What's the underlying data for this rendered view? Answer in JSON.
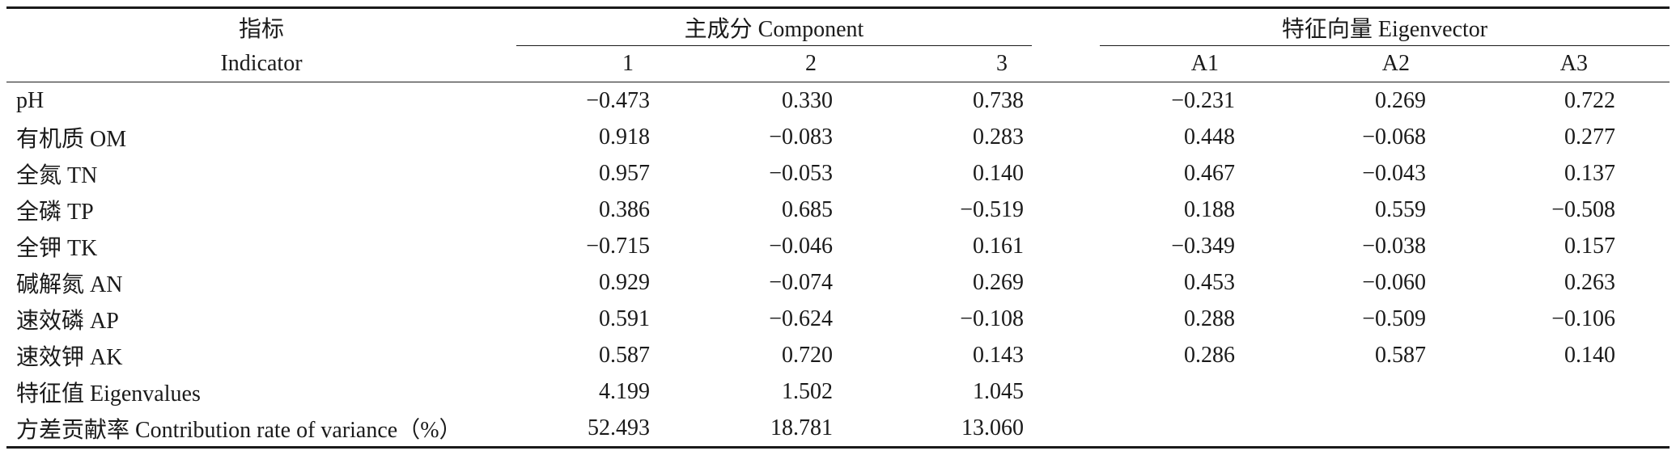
{
  "header": {
    "indicator_cn": "指标",
    "indicator_en": "Indicator",
    "group_component": "主成分 Component",
    "group_eigenvector": "特征向量 Eigenvector",
    "component_cols": [
      "1",
      "2",
      "3"
    ],
    "eigenvector_cols": [
      "A1",
      "A2",
      "A3"
    ]
  },
  "rows": [
    {
      "label": "pH",
      "c": [
        "−0.473",
        "0.330",
        "0.738"
      ],
      "e": [
        "−0.231",
        "0.269",
        "0.722"
      ]
    },
    {
      "label": "有机质 OM",
      "c": [
        "0.918",
        "−0.083",
        "0.283"
      ],
      "e": [
        "0.448",
        "−0.068",
        "0.277"
      ]
    },
    {
      "label": "全氮 TN",
      "c": [
        "0.957",
        "−0.053",
        "0.140"
      ],
      "e": [
        "0.467",
        "−0.043",
        "0.137"
      ]
    },
    {
      "label": "全磷 TP",
      "c": [
        "0.386",
        "0.685",
        "−0.519"
      ],
      "e": [
        "0.188",
        "0.559",
        "−0.508"
      ]
    },
    {
      "label": "全钾 TK",
      "c": [
        "−0.715",
        "−0.046",
        "0.161"
      ],
      "e": [
        "−0.349",
        "−0.038",
        "0.157"
      ]
    },
    {
      "label": "碱解氮 AN",
      "c": [
        "0.929",
        "−0.074",
        "0.269"
      ],
      "e": [
        "0.453",
        "−0.060",
        "0.263"
      ]
    },
    {
      "label": "速效磷 AP",
      "c": [
        "0.591",
        "−0.624",
        "−0.108"
      ],
      "e": [
        "0.288",
        "−0.509",
        "−0.106"
      ]
    },
    {
      "label": "速效钾 AK",
      "c": [
        "0.587",
        "0.720",
        "0.143"
      ],
      "e": [
        "0.286",
        "0.587",
        "0.140"
      ]
    },
    {
      "label": "特征值 Eigenvalues",
      "c": [
        "4.199",
        "1.502",
        "1.045"
      ],
      "e": [
        "",
        "",
        ""
      ]
    },
    {
      "label": "方差贡献率 Contribution rate of variance（%）",
      "c": [
        "52.493",
        "18.781",
        "13.060"
      ],
      "e": [
        "",
        "",
        ""
      ]
    }
  ]
}
